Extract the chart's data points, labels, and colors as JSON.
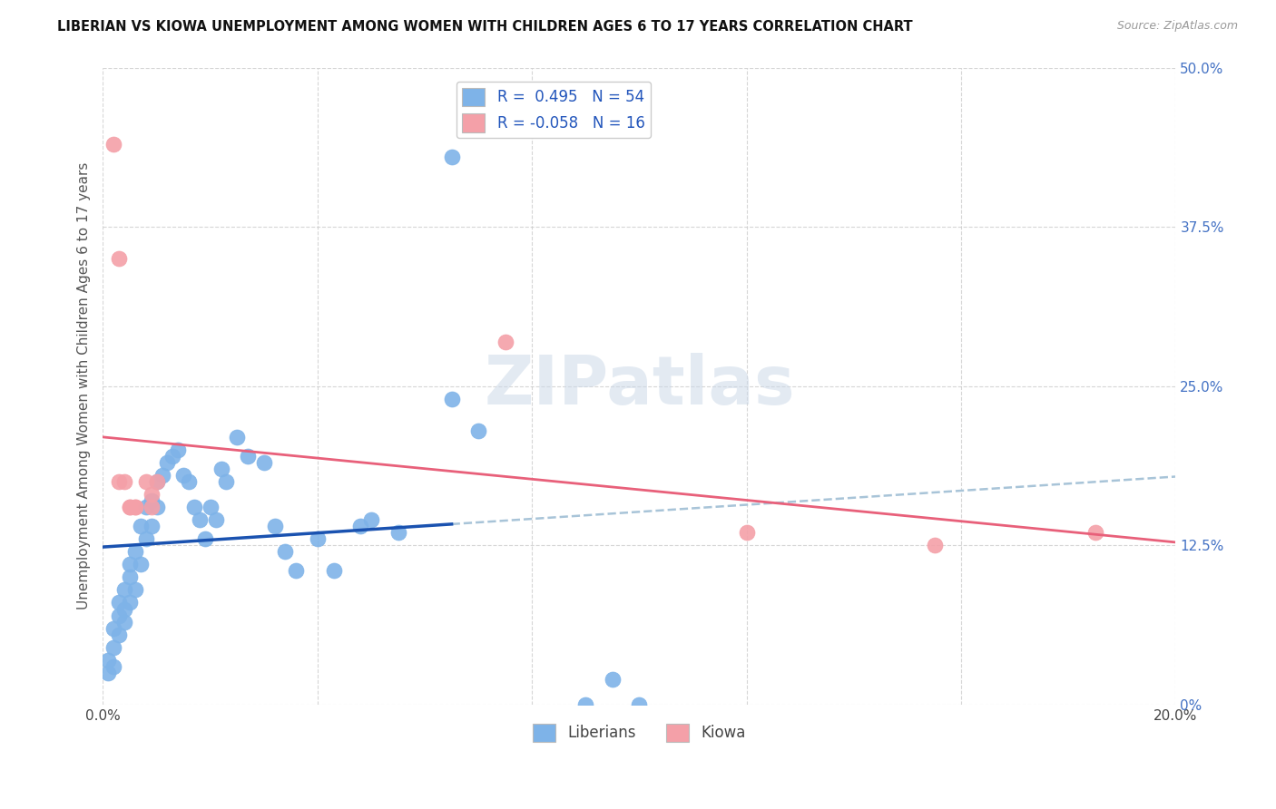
{
  "title": "LIBERIAN VS KIOWA UNEMPLOYMENT AMONG WOMEN WITH CHILDREN AGES 6 TO 17 YEARS CORRELATION CHART",
  "source": "Source: ZipAtlas.com",
  "ylabel": "Unemployment Among Women with Children Ages 6 to 17 years",
  "xlim": [
    0.0,
    0.2
  ],
  "ylim": [
    0.0,
    0.5
  ],
  "xticks": [
    0.0,
    0.04,
    0.08,
    0.12,
    0.16,
    0.2
  ],
  "yticks": [
    0.0,
    0.125,
    0.25,
    0.375,
    0.5
  ],
  "ytick_labels_right": [
    "0%",
    "12.5%",
    "25.0%",
    "37.5%",
    "50.0%"
  ],
  "xtick_labels": [
    "0.0%",
    "",
    "",
    "",
    "",
    "20.0%"
  ],
  "liberian_color": "#7eb3e8",
  "kiowa_color": "#f4a0a8",
  "liberian_line_color": "#1a52b0",
  "kiowa_line_color": "#e8607a",
  "liberian_x": [
    0.001,
    0.001,
    0.002,
    0.002,
    0.002,
    0.003,
    0.003,
    0.003,
    0.004,
    0.004,
    0.004,
    0.005,
    0.005,
    0.005,
    0.006,
    0.006,
    0.007,
    0.007,
    0.008,
    0.008,
    0.009,
    0.009,
    0.01,
    0.01,
    0.011,
    0.012,
    0.013,
    0.014,
    0.015,
    0.016,
    0.017,
    0.018,
    0.019,
    0.02,
    0.021,
    0.022,
    0.023,
    0.025,
    0.027,
    0.03,
    0.032,
    0.034,
    0.036,
    0.04,
    0.043,
    0.048,
    0.05,
    0.055,
    0.065,
    0.07,
    0.09,
    0.095,
    0.1,
    0.065
  ],
  "liberian_y": [
    0.035,
    0.025,
    0.045,
    0.06,
    0.03,
    0.07,
    0.08,
    0.055,
    0.065,
    0.09,
    0.075,
    0.1,
    0.11,
    0.08,
    0.12,
    0.09,
    0.14,
    0.11,
    0.155,
    0.13,
    0.16,
    0.14,
    0.175,
    0.155,
    0.18,
    0.19,
    0.195,
    0.2,
    0.18,
    0.175,
    0.155,
    0.145,
    0.13,
    0.155,
    0.145,
    0.185,
    0.175,
    0.21,
    0.195,
    0.19,
    0.14,
    0.12,
    0.105,
    0.13,
    0.105,
    0.14,
    0.145,
    0.135,
    0.24,
    0.215,
    0.0,
    0.02,
    0.0,
    0.43
  ],
  "kiowa_x": [
    0.002,
    0.003,
    0.004,
    0.005,
    0.006,
    0.008,
    0.009,
    0.01,
    0.075,
    0.12,
    0.155,
    0.185,
    0.003,
    0.005,
    0.006,
    0.009
  ],
  "kiowa_y": [
    0.44,
    0.175,
    0.175,
    0.155,
    0.155,
    0.175,
    0.165,
    0.175,
    0.285,
    0.135,
    0.125,
    0.135,
    0.35,
    0.155,
    0.155,
    0.155
  ],
  "background_color": "#ffffff",
  "grid_color": "#cccccc",
  "watermark": "ZIPatlas",
  "legend_labels": [
    "R =  0.495   N = 54",
    "R = -0.058   N = 16"
  ],
  "legend_bottom": [
    "Liberians",
    "Kiowa"
  ]
}
